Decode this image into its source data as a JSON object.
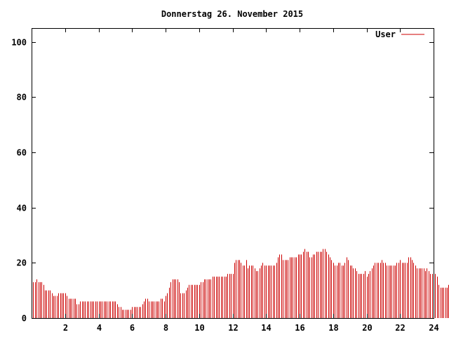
{
  "chart_data": {
    "type": "bar",
    "title": "Donnerstag 26. November 2015",
    "xlabel": "",
    "ylabel": "",
    "xlim": [
      0,
      24
    ],
    "ylim": [
      0,
      105
    ],
    "x_ticks": [
      0,
      2,
      4,
      6,
      8,
      10,
      12,
      14,
      16,
      18,
      20,
      22,
      24
    ],
    "x_tick_labels": [
      "",
      "2",
      "4",
      "6",
      "8",
      "10",
      "12",
      "14",
      "16",
      "18",
      "20",
      "22",
      "24"
    ],
    "y_ticks": [
      0,
      20,
      40,
      60,
      80,
      100
    ],
    "y_tick_labels": [
      "0",
      "20",
      "40",
      "60",
      "80",
      "100"
    ],
    "grid": false,
    "legend_position": "top-right",
    "colors": {
      "series": "#cc0000",
      "axes": "#000000",
      "background": "#ffffff"
    },
    "series": [
      {
        "name": "User",
        "x_start": 0,
        "x_step": 0.1,
        "values": [
          13,
          13,
          13,
          14,
          13,
          13,
          13,
          12,
          10,
          10,
          10,
          10,
          9,
          8,
          8,
          8,
          9,
          9,
          9,
          9,
          9,
          8,
          7,
          7,
          7,
          7,
          7,
          5,
          5,
          6,
          6,
          6,
          6,
          6,
          6,
          6,
          6,
          6,
          6,
          6,
          6,
          6,
          6,
          6,
          6,
          6,
          6,
          6,
          6,
          6,
          6,
          5,
          4,
          4,
          3,
          3,
          3,
          3,
          3,
          3,
          4,
          4,
          4,
          4,
          4,
          4,
          5,
          6,
          7,
          7,
          6,
          6,
          6,
          6,
          6,
          6,
          6,
          7,
          7,
          6,
          8,
          9,
          11,
          13,
          14,
          14,
          14,
          14,
          13,
          9,
          9,
          9,
          10,
          11,
          12,
          12,
          12,
          12,
          12,
          12,
          12,
          13,
          13,
          14,
          14,
          14,
          14,
          14,
          15,
          15,
          15,
          15,
          15,
          15,
          15,
          15,
          15,
          16,
          16,
          16,
          16,
          20,
          21,
          21,
          21,
          20,
          19,
          19,
          21,
          18,
          19,
          19,
          19,
          18,
          17,
          17,
          18,
          19,
          20,
          19,
          19,
          19,
          19,
          19,
          19,
          19,
          20,
          22,
          23,
          23,
          21,
          21,
          21,
          21,
          22,
          22,
          22,
          22,
          22,
          23,
          23,
          23,
          24,
          25,
          24,
          24,
          22,
          22,
          23,
          23,
          24,
          24,
          24,
          24,
          25,
          25,
          24,
          23,
          22,
          21,
          20,
          19,
          19,
          20,
          20,
          19,
          19,
          20,
          22,
          21,
          19,
          19,
          18,
          18,
          17,
          16,
          16,
          16,
          16,
          17,
          15,
          16,
          17,
          18,
          19,
          20,
          20,
          20,
          20,
          21,
          20,
          20,
          19,
          19,
          19,
          19,
          19,
          19,
          20,
          20,
          21,
          20,
          20,
          20,
          20,
          22,
          22,
          21,
          20,
          19,
          18,
          18,
          18,
          18,
          18,
          17,
          18,
          17,
          16,
          16,
          17,
          16,
          15,
          12,
          11,
          11,
          11,
          11,
          11,
          12,
          11
        ]
      }
    ]
  }
}
